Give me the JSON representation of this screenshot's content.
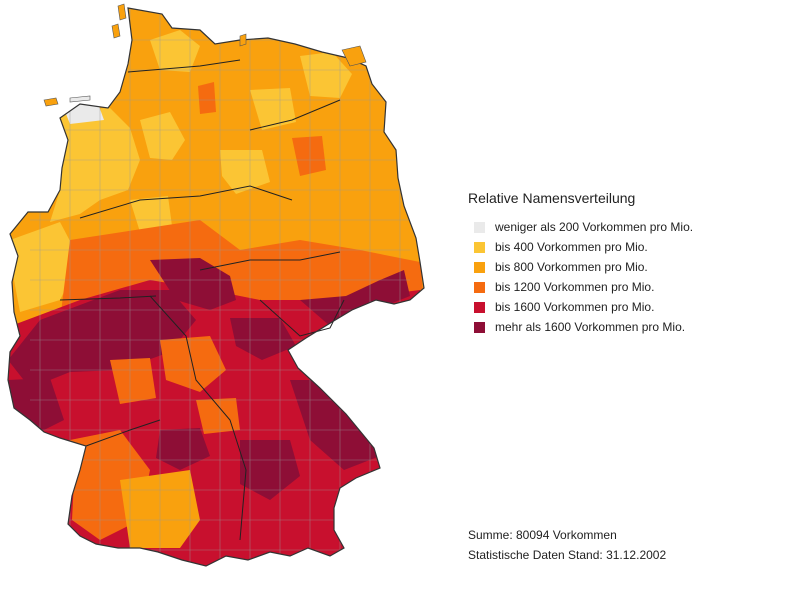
{
  "legend": {
    "title": "Relative Namensverteilung",
    "items": [
      {
        "label": "weniger als 200 Vorkommen pro Mio.",
        "color": "#eaeaea"
      },
      {
        "label": "bis 400 Vorkommen pro Mio.",
        "color": "#fbc534"
      },
      {
        "label": "bis 800 Vorkommen pro Mio.",
        "color": "#f9a10e"
      },
      {
        "label": "bis 1200 Vorkommen pro Mio.",
        "color": "#f56b10"
      },
      {
        "label": "bis 1600 Vorkommen pro Mio.",
        "color": "#c8102e"
      },
      {
        "label": "mehr als 1600 Vorkommen pro Mio.",
        "color": "#8e0e36"
      }
    ]
  },
  "footer": {
    "sum": "Summe: 80094 Vorkommen",
    "stand": "Statistische Daten Stand: 31.12.2002"
  },
  "map": {
    "region_name": "Germany",
    "border_color": "#9a9a9a",
    "state_border_color": "#222222"
  }
}
